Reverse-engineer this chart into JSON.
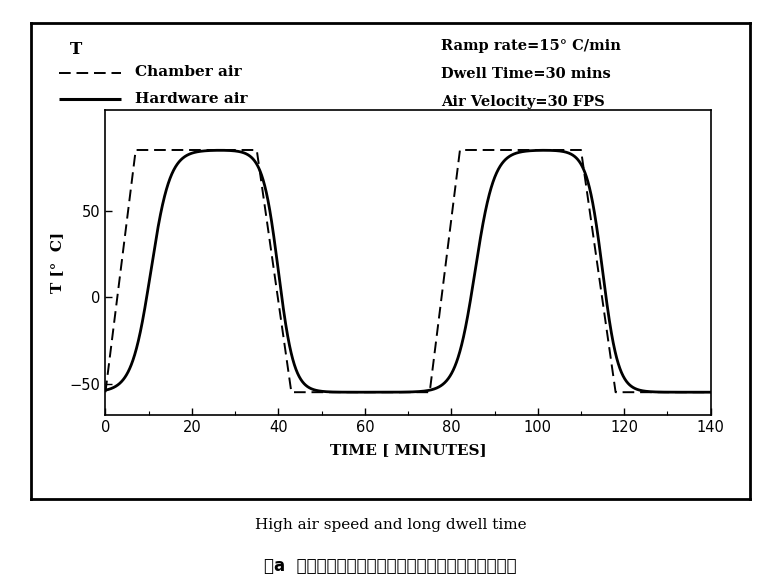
{
  "title_sub": "High air speed and long dwell time",
  "caption": "图a  产品温度变化与筱体内空气温度变化的实际曲线。",
  "ylabel": "T [°  C]",
  "xlabel": "TIME [ MINUTES]",
  "legend_T": "T",
  "legend_chamber": "Chamber air",
  "legend_hardware": "Hardware air",
  "ann_ramp": "Ramp rate=15° C/min",
  "ann_dwell": "Dwell Time=30 mins",
  "ann_vel": "Air Velocity=30 FPS",
  "xlim": [
    0,
    140
  ],
  "ylim": [
    -68,
    108
  ],
  "xticks": [
    0,
    20,
    40,
    60,
    80,
    100,
    120,
    140
  ],
  "yticks": [
    -50,
    0,
    50
  ],
  "hot_temp": 85,
  "cold_temp": -55,
  "line_color": "#000000",
  "bg_color": "#ffffff"
}
